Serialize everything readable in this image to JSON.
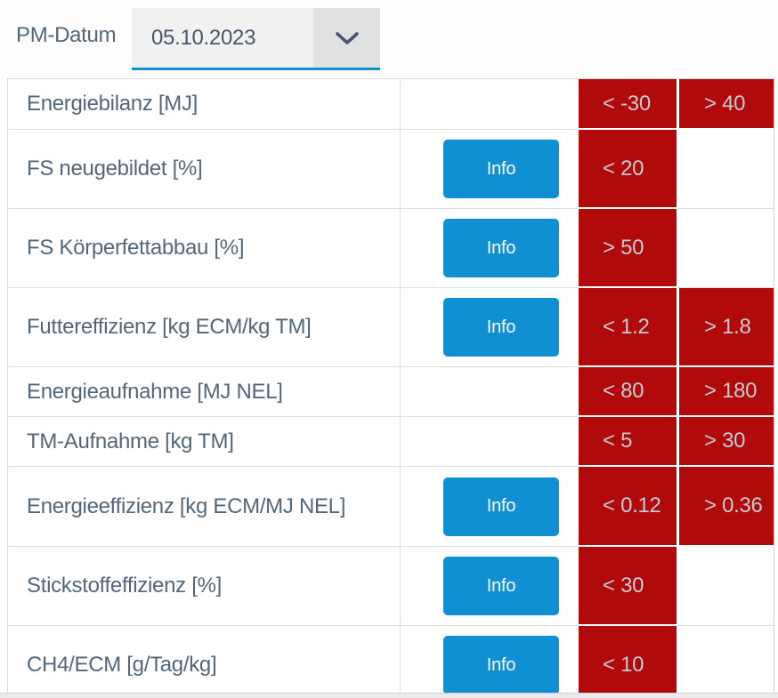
{
  "header": {
    "label": "PM-Datum",
    "date_value": "05.10.2023"
  },
  "icons": {
    "chevron_down": "chevron-down-icon"
  },
  "colors": {
    "accent_blue": "#0e90d3",
    "alert_red": "#b20a0a",
    "label_text": "#53677a",
    "red_cell_text": "#c3ccd3",
    "select_background": "#f1f1f2",
    "chevron_zone_background": "#e0e1e3"
  },
  "table": {
    "info_button_label": "Info",
    "rows": [
      {
        "label": "Energiebilanz [MJ]",
        "info": false,
        "low": "< -30",
        "high": "> 40"
      },
      {
        "label": "FS neugebildet [%]",
        "info": true,
        "low": "< 20",
        "high": ""
      },
      {
        "label": "FS Körperfettabbau [%]",
        "info": true,
        "low": "> 50",
        "high": ""
      },
      {
        "label": "Futtereffizienz [kg ECM/kg TM]",
        "info": true,
        "low": "< 1.2",
        "high": "> 1.8"
      },
      {
        "label": "Energieaufnahme [MJ NEL]",
        "info": false,
        "low": "< 80",
        "high": "> 180"
      },
      {
        "label": "TM-Aufnahme [kg TM]",
        "info": false,
        "low": "< 5",
        "high": "> 30"
      },
      {
        "label": "Energieeffizienz [kg ECM/MJ NEL]",
        "info": true,
        "low": "< 0.12",
        "high": "> 0.36"
      },
      {
        "label": "Stickstoffeffizienz [%]",
        "info": true,
        "low": "< 30",
        "high": ""
      },
      {
        "label": "CH4/ECM [g/Tag/kg]",
        "info": true,
        "low": "< 10",
        "high": ""
      }
    ]
  }
}
